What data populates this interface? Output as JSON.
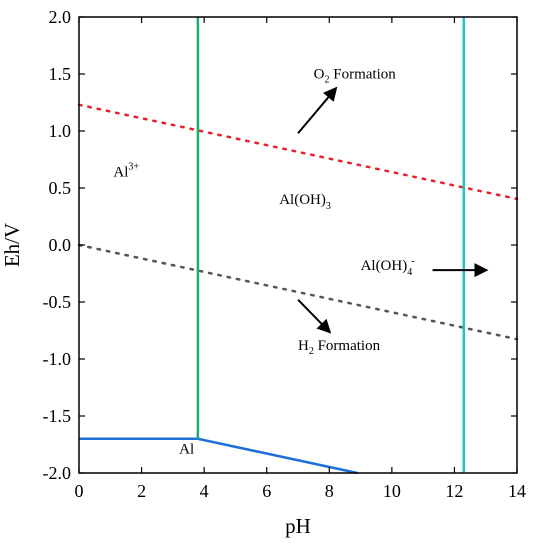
{
  "chart_data": {
    "type": "line",
    "title": "",
    "xlabel": "pH",
    "ylabel": "Eh/V",
    "xlim": [
      0,
      14
    ],
    "ylim": [
      -2.0,
      2.0
    ],
    "x_ticks": [
      "0",
      "2",
      "4",
      "6",
      "8",
      "10",
      "12",
      "14"
    ],
    "y_ticks": [
      "2.0",
      "1.5",
      "1.0",
      "0.5",
      "0.0",
      "-0.5",
      "-1.0",
      "-1.5",
      "-2.0"
    ],
    "grid": false,
    "colors": {
      "o2_line": "#e8202a",
      "h2_line": "#555555",
      "al_boundary": "#1f6fd6",
      "vertical_1": "#1aaf6c",
      "vertical_2": "#26c2c2"
    },
    "series": [
      {
        "style": "dotted",
        "color": "#e8202a",
        "x": [
          0,
          14
        ],
        "y": [
          1.23,
          0.404
        ]
      },
      {
        "style": "dotted",
        "color": "#555555",
        "x": [
          0,
          14
        ],
        "y": [
          0.0,
          -0.826
        ]
      },
      {
        "style": "solid",
        "color": "#1f6fd6",
        "x": [
          0,
          3.8,
          8.9
        ],
        "y": [
          -1.7,
          -1.7,
          -2.0
        ]
      },
      {
        "style": "solid",
        "color": "#1aaf6c",
        "x": [
          3.8,
          3.8
        ],
        "y": [
          -1.7,
          2.0
        ]
      },
      {
        "style": "solid",
        "color": "#26c2c2",
        "x": [
          12.3,
          12.3
        ],
        "y": [
          -2.0,
          2.0
        ]
      }
    ],
    "annotations": [
      {
        "id": "al3",
        "text": "Al",
        "sup": "3+",
        "x": 1.1,
        "y": 0.6
      },
      {
        "id": "aloh3",
        "text": "Al(OH)",
        "sub": "3",
        "x": 6.4,
        "y": 0.36
      },
      {
        "id": "aloh4",
        "text": "Al(OH)",
        "sub": "4",
        "sup": "-",
        "x": 9.0,
        "y": -0.22
      },
      {
        "id": "al",
        "text": "Al",
        "x": 3.2,
        "y": -1.83
      },
      {
        "id": "o2",
        "prefix": "O",
        "sub": "2",
        "text": " Formation",
        "x": 7.5,
        "y": 1.46
      },
      {
        "id": "h2",
        "prefix": "H",
        "sub": "2",
        "text": " Formation",
        "x": 7.0,
        "y": -0.92
      }
    ],
    "arrows": [
      {
        "id": "o2-arrow",
        "from": [
          7.0,
          0.98
        ],
        "to": [
          8.2,
          1.37
        ]
      },
      {
        "id": "h2-arrow",
        "from": [
          7.0,
          -0.48
        ],
        "to": [
          8.0,
          -0.76
        ]
      },
      {
        "id": "aloh4-arrow",
        "from": [
          11.3,
          -0.22
        ],
        "to": [
          13.0,
          -0.22
        ]
      }
    ]
  }
}
